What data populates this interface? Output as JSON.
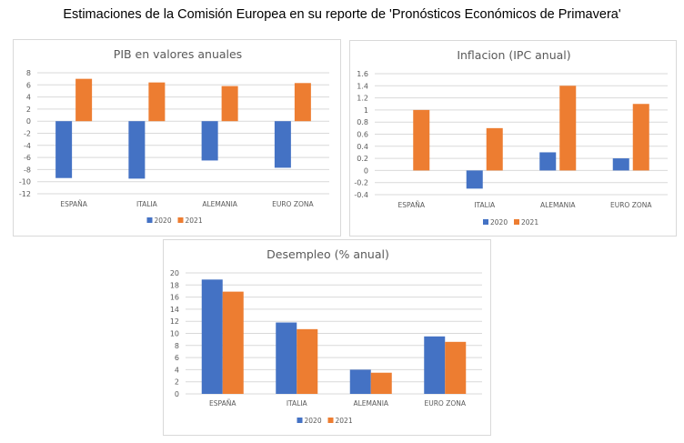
{
  "page": {
    "title": "Estimaciones de la Comisión Europea en su reporte de 'Pronósticos Económicos de Primavera'"
  },
  "colors": {
    "series_2020": "#4472c4",
    "series_2021": "#ed7d31"
  },
  "chart_data": [
    {
      "id": "pib",
      "type": "bar",
      "title": "PIB en valores anuales",
      "xlabel": "",
      "ylabel": "",
      "categories": [
        "ESPAÑA",
        "ITALIA",
        "ALEMANIA",
        "EURO ZONA"
      ],
      "series": [
        {
          "name": "2020",
          "values": [
            -9.4,
            -9.5,
            -6.5,
            -7.7
          ]
        },
        {
          "name": "2021",
          "values": [
            7.0,
            6.4,
            5.8,
            6.3
          ]
        }
      ],
      "ylim": [
        -12,
        8
      ],
      "yticks": [
        "8",
        "6",
        "4",
        "2",
        "0",
        "-2",
        "-4",
        "-6",
        "-8",
        "-10",
        "-12"
      ],
      "ytick_values": [
        8,
        6,
        4,
        2,
        0,
        -2,
        -4,
        -6,
        -8,
        -10,
        -12
      ],
      "grid": true,
      "legend": "bottom"
    },
    {
      "id": "inflacion",
      "type": "bar",
      "title": "Inflacion (IPC anual)",
      "xlabel": "",
      "ylabel": "",
      "categories": [
        "ESPAÑA",
        "ITALIA",
        "ALEMANIA",
        "EURO ZONA"
      ],
      "series": [
        {
          "name": "2020",
          "values": [
            0.0,
            -0.3,
            0.3,
            0.2
          ]
        },
        {
          "name": "2021",
          "values": [
            1.0,
            0.7,
            1.4,
            1.1
          ]
        }
      ],
      "ylim": [
        -0.4,
        1.6
      ],
      "yticks": [
        "1.6",
        "1.4",
        "1.2",
        "1",
        "0.8",
        "0.6",
        "0.4",
        "0.2",
        "0",
        "-0.2",
        "-0.4"
      ],
      "ytick_values": [
        1.6,
        1.4,
        1.2,
        1.0,
        0.8,
        0.6,
        0.4,
        0.2,
        0,
        -0.2,
        -0.4
      ],
      "grid": true,
      "legend": "bottom"
    },
    {
      "id": "desempleo",
      "type": "bar",
      "title": "Desempleo (% anual)",
      "xlabel": "",
      "ylabel": "",
      "categories": [
        "ESPAÑA",
        "ITALIA",
        "ALEMANIA",
        "EURO ZONA"
      ],
      "series": [
        {
          "name": "2020",
          "values": [
            18.9,
            11.8,
            4.0,
            9.5
          ]
        },
        {
          "name": "2021",
          "values": [
            16.9,
            10.7,
            3.5,
            8.6
          ]
        }
      ],
      "ylim": [
        0,
        20
      ],
      "yticks": [
        "20",
        "18",
        "16",
        "14",
        "12",
        "10",
        "8",
        "6",
        "4",
        "2",
        "0"
      ],
      "ytick_values": [
        20,
        18,
        16,
        14,
        12,
        10,
        8,
        6,
        4,
        2,
        0
      ],
      "grid": true,
      "legend": "bottom"
    }
  ]
}
